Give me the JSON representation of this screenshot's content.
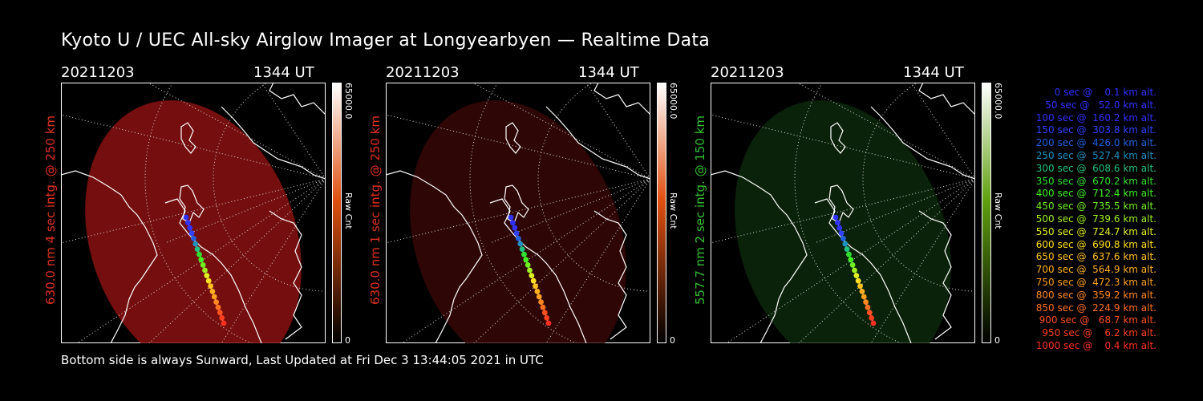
{
  "title": "Kyoto U / UEC All-sky Airglow Imager at Longyearbyen — Realtime Data",
  "panels": [
    {
      "date": "20211203",
      "time": "1344 UT",
      "side": "630.0 nm  4 sec intg. @ 250 km",
      "side_color": "#e03020",
      "cb_max": "65000.0",
      "cb_unit": "Raw Cnt",
      "cb_zero": "0",
      "glow": "#8a1010",
      "glow_alpha": 0.85,
      "cb_top": "#ffffff",
      "cb_mid": "#e05010",
      "cb_bot": "#000000"
    },
    {
      "date": "20211203",
      "time": "1344 UT",
      "side": "630.0 nm  1 sec intg. @ 250 km",
      "side_color": "#e03020",
      "cb_max": "65000.0",
      "cb_unit": "Raw Cnt",
      "cb_zero": "0",
      "glow": "#3a0808",
      "glow_alpha": 0.8,
      "cb_top": "#ffffff",
      "cb_mid": "#e05010",
      "cb_bot": "#000000"
    },
    {
      "date": "20211203",
      "time": "1344 UT",
      "side": "557.7 nm  2 sec intg. @ 150 km",
      "side_color": "#30c030",
      "cb_max": "65000.0",
      "cb_unit": "Raw Cnt",
      "cb_zero": "0",
      "glow": "#0c2a0c",
      "glow_alpha": 0.8,
      "cb_top": "#ffffff",
      "cb_mid": "#60a010",
      "cb_bot": "#000000"
    }
  ],
  "footer": "Bottom side is always Sunward, Last Updated at Fri Dec  3 13:44:05 2021 in UTC",
  "legend": [
    {
      "text": "   0 sec @    0.1 km alt.",
      "color": "#3030ff"
    },
    {
      "text": "  50 sec @   52.0 km alt.",
      "color": "#3030ff"
    },
    {
      "text": " 100 sec @  160.2 km alt.",
      "color": "#3030ff"
    },
    {
      "text": " 150 sec @  303.8 km alt.",
      "color": "#3040ff"
    },
    {
      "text": " 200 sec @  426.0 km alt.",
      "color": "#2060e0"
    },
    {
      "text": " 250 sec @  527.4 km alt.",
      "color": "#2090c0"
    },
    {
      "text": " 300 sec @  608.6 km alt.",
      "color": "#20c080"
    },
    {
      "text": " 350 sec @  670.2 km alt.",
      "color": "#30e030"
    },
    {
      "text": " 400 sec @  712.4 km alt.",
      "color": "#40f020"
    },
    {
      "text": " 450 sec @  735.5 km alt.",
      "color": "#70f020"
    },
    {
      "text": " 500 sec @  739.6 km alt.",
      "color": "#a0f020"
    },
    {
      "text": " 550 sec @  724.7 km alt.",
      "color": "#e0f020"
    },
    {
      "text": " 600 sec @  690.8 km alt.",
      "color": "#ffe020"
    },
    {
      "text": " 650 sec @  637.6 km alt.",
      "color": "#ffc020"
    },
    {
      "text": " 700 sec @  564.9 km alt.",
      "color": "#ffb020"
    },
    {
      "text": " 750 sec @  472.3 km alt.",
      "color": "#ffa020"
    },
    {
      "text": " 800 sec @  359.2 km alt.",
      "color": "#ff8820"
    },
    {
      "text": " 850 sec @  224.9 km alt.",
      "color": "#ff7020"
    },
    {
      "text": " 900 sec @   68.7 km alt.",
      "color": "#ff5020"
    },
    {
      "text": " 950 sec @    6.2 km alt.",
      "color": "#ff4020"
    },
    {
      "text": "1000 sec @    0.4 km alt.",
      "color": "#ff3020"
    }
  ],
  "track_colors": [
    "#3030ff",
    "#3030ff",
    "#3030ff",
    "#3040ff",
    "#2060e0",
    "#2090c0",
    "#20c080",
    "#30e030",
    "#40f020",
    "#70f020",
    "#a0f020",
    "#e0f020",
    "#ffe020",
    "#ffc020",
    "#ffb020",
    "#ffa020",
    "#ff8820",
    "#ff7020",
    "#ff5020",
    "#ff4020",
    "#ff3020"
  ]
}
